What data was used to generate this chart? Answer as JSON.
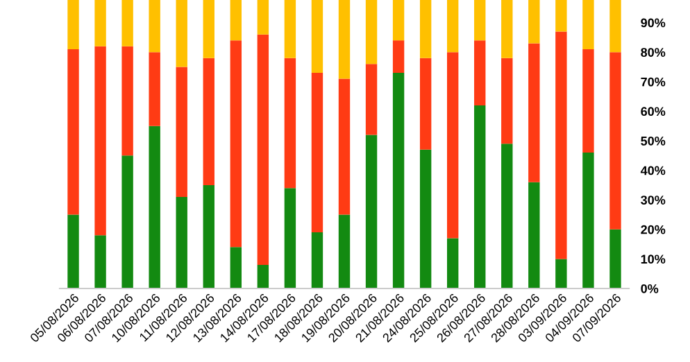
{
  "chart_data": {
    "type": "bar",
    "stacked": true,
    "categories": [
      "05/08/2026",
      "06/08/2026",
      "07/08/2026",
      "10/08/2026",
      "11/08/2026",
      "12/08/2026",
      "13/08/2026",
      "14/08/2026",
      "17/08/2026",
      "18/08/2026",
      "19/08/2026",
      "20/08/2026",
      "21/08/2026",
      "24/08/2026",
      "25/08/2026",
      "26/08/2026",
      "27/08/2026",
      "28/08/2026",
      "03/09/2026",
      "04/09/2026",
      "07/09/2026"
    ],
    "series": [
      {
        "color": "#138a11",
        "values": [
          25,
          18,
          45,
          55,
          31,
          35,
          14,
          8,
          34,
          19,
          25,
          52,
          73,
          47,
          17,
          62,
          49,
          36,
          10,
          46,
          20
        ]
      },
      {
        "color": "#ff3b14",
        "values": [
          56,
          64,
          37,
          25,
          44,
          43,
          70,
          78,
          44,
          54,
          46,
          24,
          11,
          31,
          63,
          22,
          29,
          47,
          77,
          35,
          60
        ]
      },
      {
        "color": "#ffc000",
        "values": [
          19,
          18,
          18,
          20,
          25,
          22,
          16,
          14,
          22,
          27,
          29,
          24,
          16,
          22,
          20,
          16,
          22,
          17,
          13,
          19,
          20
        ]
      }
    ],
    "ylim": [
      0,
      100
    ],
    "yticks": [
      {
        "value": 0,
        "label": "0%"
      },
      {
        "value": 10,
        "label": "10%"
      },
      {
        "value": 20,
        "label": "20%"
      },
      {
        "value": 30,
        "label": "30%"
      },
      {
        "value": 40,
        "label": "40%"
      },
      {
        "value": 50,
        "label": "50%"
      },
      {
        "value": 60,
        "label": "60%"
      },
      {
        "value": 70,
        "label": "70%"
      },
      {
        "value": 80,
        "label": "80%"
      },
      {
        "value": 90,
        "label": "90%"
      }
    ]
  }
}
